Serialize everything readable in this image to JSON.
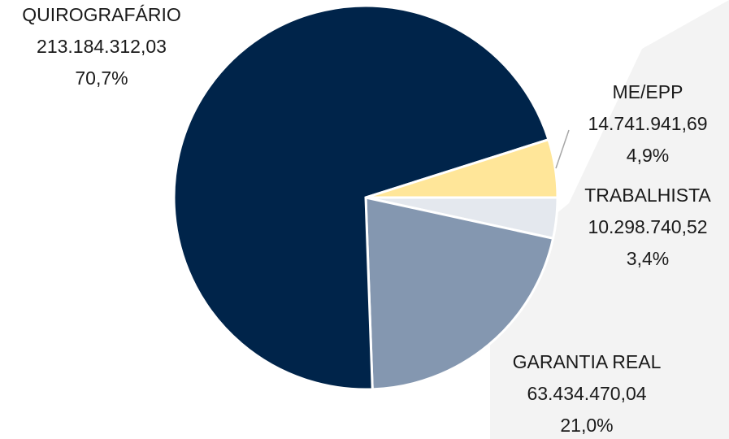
{
  "chart_data": {
    "type": "pie",
    "categories": [
      "TRABALHISTA",
      "GARANTIA REAL",
      "QUIROGRAFÁRIO",
      "ME/EPP"
    ],
    "values": [
      10298740.52,
      63434470.04,
      213184312.03,
      14741941.69
    ],
    "value_labels": [
      "10.298.740,52",
      "63.434.470,04",
      "213.184.312,03",
      "14.741.941,69"
    ],
    "percentages": [
      3.4,
      21.0,
      70.7,
      4.9
    ],
    "percentage_labels": [
      "3,4%",
      "21,0%",
      "70,7%",
      "4,9%"
    ],
    "colors": [
      "#e4e8ee",
      "#8497b0",
      "#00244a",
      "#ffe699"
    ]
  }
}
